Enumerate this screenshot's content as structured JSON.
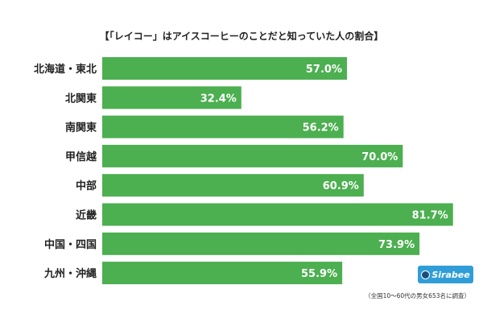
{
  "chart_data": {
    "type": "bar",
    "orientation": "horizontal",
    "title": "【「レイコー」はアイスコーヒーのことだと知っていた人の割合】",
    "categories": [
      "北海道・東北",
      "北関東",
      "南関東",
      "甲信越",
      "中部",
      "近畿",
      "中国・四国",
      "九州・沖縄"
    ],
    "values": [
      57.0,
      32.4,
      56.2,
      70.0,
      60.9,
      81.7,
      73.9,
      55.9
    ],
    "value_labels": [
      "57.0%",
      "32.4%",
      "56.2%",
      "70.0%",
      "60.9%",
      "81.7%",
      "73.9%",
      "55.9%"
    ],
    "xlim": [
      0,
      90
    ],
    "grid": false,
    "legend": "none",
    "bar_color": "#4caf50"
  },
  "logo": {
    "text": "Sirabee",
    "color": "#2f9ed8"
  },
  "source_note": "（全国10～60代の男女653名に調査）"
}
